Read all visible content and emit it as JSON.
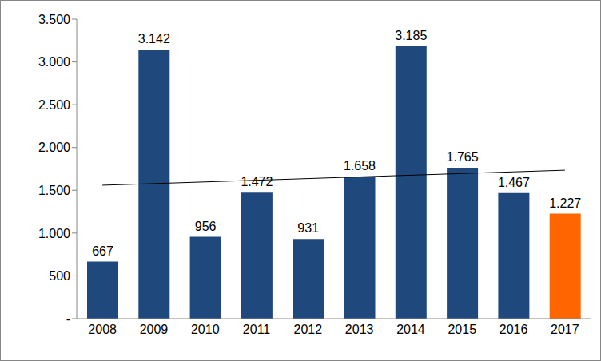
{
  "chart_data": {
    "type": "bar",
    "categories": [
      "2008",
      "2009",
      "2010",
      "2011",
      "2012",
      "2013",
      "2014",
      "2015",
      "2016",
      "2017"
    ],
    "values": [
      667,
      3142,
      956,
      1472,
      931,
      1658,
      3185,
      1765,
      1467,
      1227
    ],
    "value_labels": [
      "667",
      "3.142",
      "956",
      "1.472",
      "931",
      "1.658",
      "3.185",
      "1.765",
      "1.467",
      "1.227"
    ],
    "colors": [
      "#1F497D",
      "#1F497D",
      "#1F497D",
      "#1F497D",
      "#1F497D",
      "#1F497D",
      "#1F497D",
      "#1F497D",
      "#1F497D",
      "#FF6600"
    ],
    "ylim": [
      0,
      3500
    ],
    "yticks": [
      {
        "value": 0,
        "label": "-"
      },
      500,
      {
        "value": 1000,
        "label": "1.000"
      },
      {
        "value": 1500,
        "label": "1.500"
      },
      {
        "value": 2000,
        "label": "2.000"
      },
      {
        "value": 2500,
        "label": "2.500"
      },
      {
        "value": 3000,
        "label": "3.000"
      },
      {
        "value": 3500,
        "label": "3.500"
      }
    ],
    "grid": false,
    "data_labels": true
  }
}
